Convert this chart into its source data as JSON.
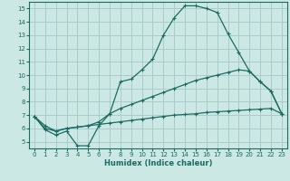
{
  "xlabel": "Humidex (Indice chaleur)",
  "bg_color": "#cce8e5",
  "grid_color": "#aaccca",
  "line_color": "#1a6b60",
  "xlim": [
    -0.5,
    23.5
  ],
  "ylim": [
    4.5,
    15.5
  ],
  "yticks": [
    5,
    6,
    7,
    8,
    9,
    10,
    11,
    12,
    13,
    14,
    15
  ],
  "xticks": [
    0,
    1,
    2,
    3,
    4,
    5,
    6,
    7,
    8,
    9,
    10,
    11,
    12,
    13,
    14,
    15,
    16,
    17,
    18,
    19,
    20,
    21,
    22,
    23
  ],
  "line1_x": [
    0,
    1,
    2,
    3,
    4,
    5,
    6,
    7,
    8,
    9,
    10,
    11,
    12,
    13,
    14,
    15,
    16,
    17,
    18,
    19,
    20,
    21,
    22,
    23
  ],
  "line1_y": [
    6.9,
    5.9,
    5.5,
    5.8,
    4.7,
    4.7,
    6.2,
    7.1,
    9.5,
    9.7,
    10.4,
    11.2,
    13.0,
    14.3,
    15.2,
    15.2,
    15.0,
    14.7,
    13.1,
    11.7,
    10.3,
    9.5,
    8.8,
    7.1
  ],
  "line2_x": [
    0,
    1,
    2,
    3,
    4,
    5,
    6,
    7,
    8,
    9,
    10,
    11,
    12,
    13,
    14,
    15,
    16,
    17,
    18,
    19,
    20,
    21,
    22,
    23
  ],
  "line2_y": [
    6.9,
    6.0,
    5.8,
    6.0,
    6.1,
    6.2,
    6.3,
    6.4,
    6.5,
    6.6,
    6.7,
    6.8,
    6.9,
    7.0,
    7.05,
    7.1,
    7.2,
    7.25,
    7.3,
    7.35,
    7.4,
    7.45,
    7.5,
    7.1
  ],
  "line3_x": [
    0,
    1,
    2,
    3,
    4,
    5,
    6,
    7,
    8,
    9,
    10,
    11,
    12,
    13,
    14,
    15,
    16,
    17,
    18,
    19,
    20,
    21,
    22,
    23
  ],
  "line3_y": [
    6.9,
    6.2,
    5.8,
    6.0,
    6.1,
    6.2,
    6.5,
    7.1,
    7.5,
    7.8,
    8.1,
    8.4,
    8.7,
    9.0,
    9.3,
    9.6,
    9.8,
    10.0,
    10.2,
    10.4,
    10.3,
    9.5,
    8.8,
    7.1
  ]
}
